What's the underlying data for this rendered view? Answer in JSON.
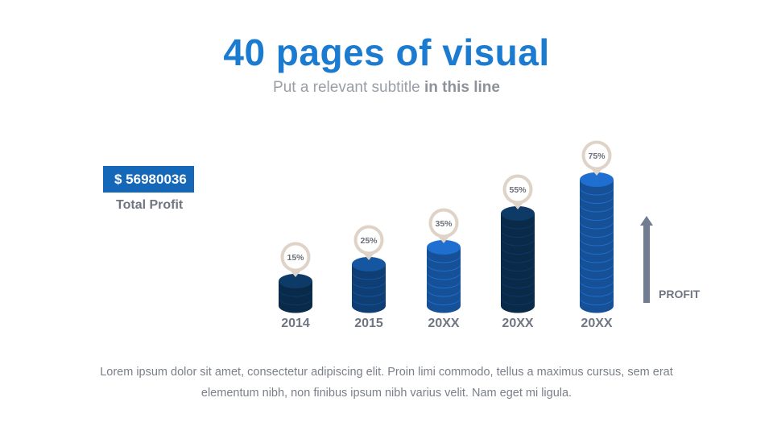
{
  "slide": {
    "title": "40 pages of visual",
    "subtitle_plain": "Put a relevant subtitle",
    "subtitle_bold": "in this line",
    "profit_value": "$ 56980036",
    "profit_label": "Total Profit",
    "arrow_label": "PROFIT",
    "body_text": "Lorem ipsum dolor sit amet, consectetur adipiscing elit. Proin  limi commodo, tellus a maximus cursus, sem erat elementum nibh, non finibus ipsum nibh varius velit. Nam eget mi ligula."
  },
  "colors": {
    "title": "#1a7bd0",
    "accent_box": "#1567b8",
    "stack_dark": "#0d3a66",
    "stack_mid": "#1456a0",
    "stack_bright": "#1f6fd1",
    "pin_ring": "#dfd2c7",
    "arrow": "#6f7c92"
  },
  "chart_data": {
    "type": "bar",
    "categories": [
      "2014",
      "2015",
      "20XX",
      "20XX",
      "20XX"
    ],
    "values": [
      15,
      25,
      35,
      55,
      75
    ],
    "value_labels": [
      "15%",
      "25%",
      "35%",
      "55%",
      "75%"
    ],
    "ylabel": "PROFIT",
    "ylim": [
      0,
      75
    ]
  }
}
